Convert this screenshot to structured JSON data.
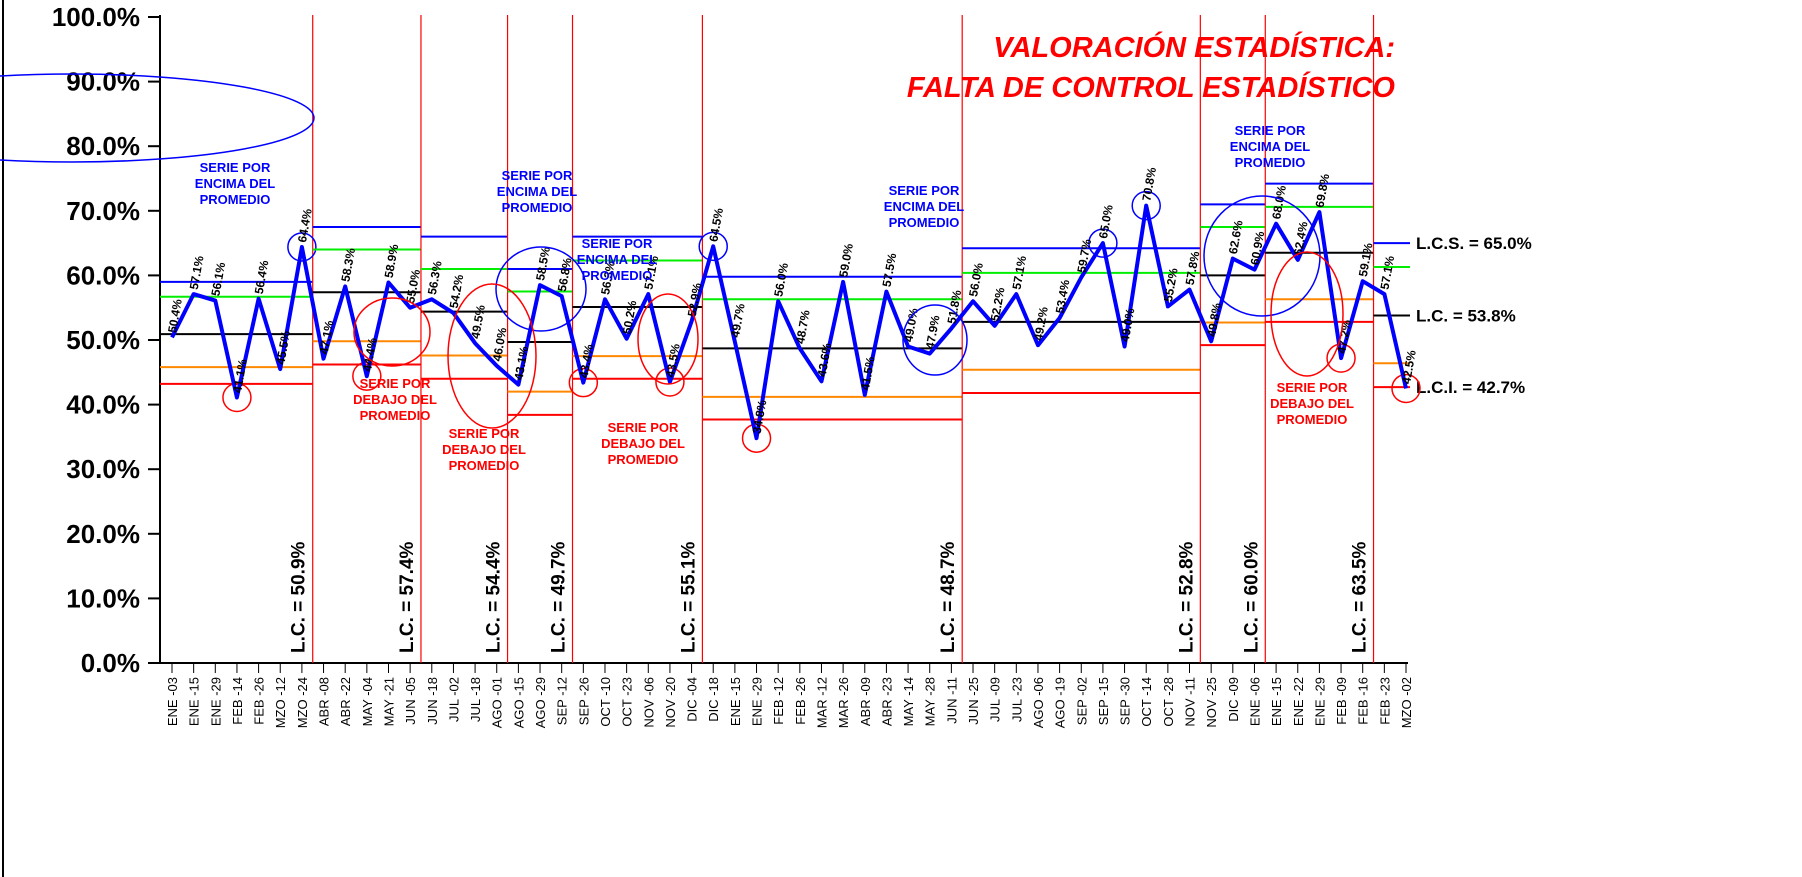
{
  "chart_data": {
    "type": "control",
    "title_lines": [
      "VALORACIÓN ESTADÍSTICA:",
      "FALTA DE CONTROL ESTADÍSTICO"
    ],
    "categories": [
      "ENE -03",
      "ENE -15",
      "ENE -29",
      "FEB -14",
      "FEB -26",
      "MZO -12",
      "MZO -24",
      "ABR -08",
      "ABR -22",
      "MAY -04",
      "MAY -21",
      "JUN -05",
      "JUN -18",
      "JUL -02",
      "JUL -18",
      "AGO -01",
      "AGO -15",
      "AGO -29",
      "SEP -12",
      "SEP -26",
      "OCT -10",
      "OCT -23",
      "NOV -06",
      "NOV -20",
      "DIC -04",
      "DIC -18",
      "ENE -15",
      "ENE -29",
      "FEB -12",
      "FEB -26",
      "MAR -12",
      "MAR -26",
      "ABR -09",
      "ABR -23",
      "MAY -14",
      "MAY -28",
      "JUN -11",
      "JUN -25",
      "JUL -09",
      "JUL -23",
      "AGO -06",
      "AGO -19",
      "SEP -02",
      "SEP -15",
      "SEP -30",
      "OCT -14",
      "OCT -28",
      "NOV -11",
      "NOV -25",
      "DIC -09",
      "ENE -06",
      "ENE -15",
      "ENE -22",
      "ENE -29",
      "FEB -09",
      "FEB -16",
      "FEB -23",
      "MZO -02"
    ],
    "values": [
      50.4,
      57.1,
      56.1,
      41.1,
      56.4,
      45.5,
      64.4,
      47.1,
      58.3,
      44.4,
      58.9,
      55.0,
      56.3,
      54.2,
      49.5,
      46.0,
      43.1,
      58.5,
      56.8,
      43.4,
      56.3,
      50.2,
      57.1,
      43.5,
      52.9,
      64.5,
      49.7,
      34.8,
      56.0,
      48.7,
      43.6,
      59.0,
      41.5,
      57.5,
      49.0,
      47.9,
      51.8,
      56.0,
      52.2,
      57.1,
      49.2,
      53.4,
      59.7,
      65.0,
      49.0,
      70.8,
      55.2,
      57.8,
      49.8,
      62.6,
      60.9,
      68.0,
      62.4,
      69.8,
      47.2,
      59.1,
      57.1,
      42.5
    ],
    "value_labels": [
      "50.4%",
      "57.1%",
      "56.1%",
      "41.1%",
      "56.4%",
      "45.5%",
      "64.4%",
      "47.1%",
      "58.3%",
      "44.4%",
      "58.9%",
      "55.0%",
      "56.3%",
      "54.2%",
      "49.5%",
      "46.0%",
      "43.1%",
      "58.5%",
      "56.8%",
      "43.4%",
      "56.3%",
      "50.2%",
      "57.1%",
      "43.5%",
      "52.9%",
      "64.5%",
      "49.7%",
      "34.8%",
      "56.0%",
      "48.7%",
      "43.6%",
      "59.0%",
      "41.5%",
      "57.5%",
      "49.0%",
      "47.9%",
      "51.8%",
      "56.0%",
      "52.2%",
      "57.1%",
      "49.2%",
      "53.4%",
      "59.7%",
      "65.0%",
      "49.0%",
      "70.8%",
      "55.2%",
      "57.8%",
      "49.8%",
      "62.6%",
      "60.9%",
      "68.0%",
      "62.4%",
      "69.8%",
      "47.2%",
      "59.1%",
      "57.1%",
      "42.5%"
    ],
    "color": "#0000ff",
    "segments": [
      {
        "points": 7,
        "lc": 50.9,
        "lc_label": "L.C. = 50.9%",
        "ucl": 59,
        "upper": 56.7,
        "lower": 45.8,
        "lcl": 43.2
      },
      {
        "points": 5,
        "lc": 57.4,
        "lc_label": "L.C. = 57.4%",
        "ucl": 67.5,
        "upper": 64,
        "lower": 49.8,
        "lcl": 46.2
      },
      {
        "points": 4,
        "lc": 54.4,
        "lc_label": "L.C. = 54.4%",
        "ucl": 66,
        "upper": 61,
        "lower": 47.6,
        "lcl": 44
      },
      {
        "points": 3,
        "lc": 49.7,
        "lc_label": "L.C. = 49.7%",
        "ucl": 61,
        "upper": 57.5,
        "lower": 42,
        "lcl": 38.4
      },
      {
        "points": 6,
        "lc": 55.1,
        "lc_label": "L.C. = 55.1%",
        "ucl": 66,
        "upper": 62.3,
        "lower": 47.5,
        "lcl": 44
      },
      {
        "points": 12,
        "lc": 48.7,
        "lc_label": "L.C. = 48.7%",
        "ucl": 59.8,
        "upper": 56.3,
        "lower": 41.2,
        "lcl": 37.7
      },
      {
        "points": 11,
        "lc": 52.8,
        "lc_label": "L.C. = 52.8%",
        "ucl": 64.2,
        "upper": 60.4,
        "lower": 45.4,
        "lcl": 41.8
      },
      {
        "points": 3,
        "lc": 60.0,
        "lc_label": "L.C. = 60.0%",
        "ucl": 71,
        "upper": 67.5,
        "lower": 52.7,
        "lcl": 49.2
      },
      {
        "points": 5,
        "lc": 63.5,
        "lc_label": "L.C. = 63.5%",
        "ucl": 74.2,
        "upper": 70.6,
        "lower": 56.3,
        "lcl": 52.8
      },
      {
        "points": 2,
        "lc": 53.8,
        "lc_label": "L.C. = 53.8%",
        "ucl": 65.0,
        "ucl_label": "L.C.S. = 65.0%",
        "upper": 61.3,
        "lower": 46.4,
        "lcl": 42.7,
        "lcl_label": "L.C.I. = 42.7%"
      }
    ],
    "annotations": [
      {
        "lines": [
          "SERIE POR",
          "ENCIMA DEL",
          "PROMEDIO"
        ],
        "color": "#0000ff"
      },
      {
        "lines": [
          "SERIE POR",
          "DEBAJO DEL",
          "PROMEDIO"
        ],
        "color": "#ff0000"
      },
      {
        "lines": [
          "SERIE POR",
          "ENCIMA DEL",
          "PROMEDIO"
        ],
        "color": "#0000ff"
      },
      {
        "lines": [
          "SERIE POR",
          "DEBAJO DEL",
          "PROMEDIO"
        ],
        "color": "#ff0000"
      },
      {
        "lines": [
          "SERIE POR",
          "ENCIMA DEL",
          "PROMEDIO"
        ],
        "color": "#0000ff"
      },
      {
        "lines": [
          "SERIE POR",
          "DEBAJO DEL",
          "PROMEDIO"
        ],
        "color": "#ff0000"
      },
      {
        "lines": [
          "SERIE POR",
          "ENCIMA DEL",
          "PROMEDIO"
        ],
        "color": "#0000ff"
      },
      {
        "lines": [
          "SERIE POR",
          "ENCIMA DEL",
          "PROMEDIO"
        ],
        "color": "#0000ff"
      },
      {
        "lines": [
          "SERIE POR",
          "DEBAJO DEL",
          "PROMEDIO"
        ],
        "color": "#ff0000"
      }
    ],
    "ylim": [
      0,
      100
    ],
    "yticks": [
      {
        "value": 0,
        "label": "0.0%"
      },
      {
        "value": 10,
        "label": "10.0%"
      },
      {
        "value": 20,
        "label": "20.0%"
      },
      {
        "value": 30,
        "label": "30.0%"
      },
      {
        "value": 40,
        "label": "40.0%"
      },
      {
        "value": 50,
        "label": "50.0%"
      },
      {
        "value": 60,
        "label": "60.0%"
      },
      {
        "value": 70,
        "label": "70.0%"
      },
      {
        "value": 80,
        "label": "80.0%"
      },
      {
        "value": 90,
        "label": "90.0%"
      },
      {
        "value": 100,
        "label": "100.0%"
      }
    ],
    "grid": false
  }
}
